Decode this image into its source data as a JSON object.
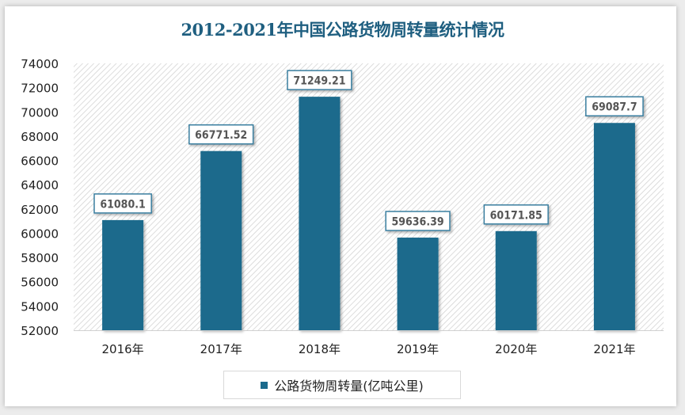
{
  "chart_data": {
    "type": "bar",
    "title": "2012-2021年中国公路货物周转量统计情况",
    "categories": [
      "2016年",
      "2017年",
      "2018年",
      "2019年",
      "2020年",
      "2021年"
    ],
    "series": [
      {
        "name": "公路货物周转量(亿吨公里)",
        "values": [
          61080.1,
          66771.52,
          71249.21,
          59636.39,
          60171.85,
          69087.7
        ]
      }
    ],
    "value_labels": [
      "61080.1",
      "66771.52",
      "71249.21",
      "59636.39",
      "60171.85",
      "69087.7"
    ],
    "ylim": [
      52000,
      74000
    ],
    "yticks": [
      "52000",
      "54000",
      "56000",
      "58000",
      "60000",
      "62000",
      "64000",
      "66000",
      "68000",
      "70000",
      "72000",
      "74000"
    ],
    "grid": false,
    "legend_position": "bottom",
    "colors": {
      "bar": "#1b6a8c",
      "title": "#1f5f80",
      "label_border": "#3a7fa0"
    }
  }
}
